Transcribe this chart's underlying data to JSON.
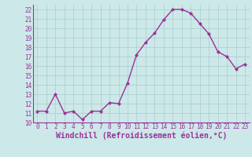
{
  "x": [
    0,
    1,
    2,
    3,
    4,
    5,
    6,
    7,
    8,
    9,
    10,
    11,
    12,
    13,
    14,
    15,
    16,
    17,
    18,
    19,
    20,
    21,
    22,
    23
  ],
  "y": [
    11.2,
    11.2,
    13.0,
    11.0,
    11.2,
    10.3,
    11.2,
    11.2,
    12.1,
    12.0,
    14.2,
    17.2,
    18.5,
    19.5,
    20.9,
    22.0,
    22.0,
    21.6,
    20.5,
    19.4,
    17.5,
    17.0,
    15.7,
    16.2
  ],
  "line_color": "#993399",
  "marker": "D",
  "marker_size": 2.0,
  "linewidth": 1.0,
  "xlabel": "Windchill (Refroidissement éolien,°C)",
  "ylim": [
    10,
    22.5
  ],
  "xlim": [
    -0.5,
    23.5
  ],
  "yticks": [
    10,
    11,
    12,
    13,
    14,
    15,
    16,
    17,
    18,
    19,
    20,
    21,
    22
  ],
  "xticks": [
    0,
    1,
    2,
    3,
    4,
    5,
    6,
    7,
    8,
    9,
    10,
    11,
    12,
    13,
    14,
    15,
    16,
    17,
    18,
    19,
    20,
    21,
    22,
    23
  ],
  "bg_color": "#cce8e8",
  "grid_color": "#aacccc",
  "label_color": "#993399",
  "tick_fontsize": 5.5,
  "xlabel_fontsize": 7.0
}
